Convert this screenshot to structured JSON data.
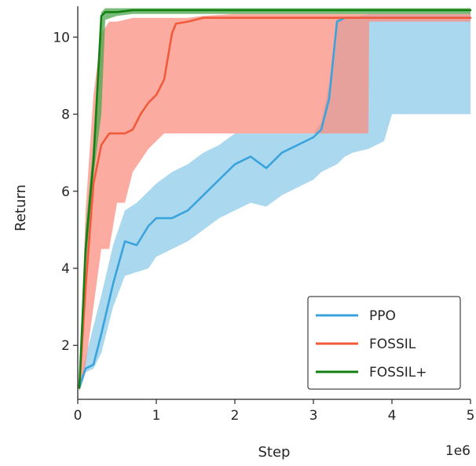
{
  "chart_data": {
    "type": "line",
    "xlabel": "Step",
    "ylabel": "Return",
    "x_offset_label": "1e6",
    "xlim": [
      0,
      5
    ],
    "ylim": [
      0.6,
      10.8
    ],
    "xticks": [
      0,
      1,
      2,
      3,
      4,
      5
    ],
    "yticks": [
      2,
      4,
      6,
      8,
      10
    ],
    "grid": false,
    "legend_position": "bottom-right",
    "series": [
      {
        "name": "PPO",
        "color": "#3ba3db",
        "band_color": "#8ecbea",
        "x": [
          0.02,
          0.1,
          0.2,
          0.3,
          0.45,
          0.6,
          0.75,
          0.9,
          1.0,
          1.2,
          1.4,
          1.6,
          1.8,
          2.0,
          2.2,
          2.4,
          2.6,
          2.8,
          3.0,
          3.1,
          3.2,
          3.3,
          3.4,
          3.5,
          3.7,
          3.9,
          4.0,
          4.5,
          5.0
        ],
        "mean": [
          0.9,
          1.4,
          1.5,
          2.3,
          3.6,
          4.7,
          4.6,
          5.1,
          5.3,
          5.3,
          5.5,
          5.9,
          6.3,
          6.7,
          6.9,
          6.6,
          7.0,
          7.2,
          7.4,
          7.6,
          8.4,
          10.4,
          10.5,
          10.5,
          10.5,
          10.5,
          10.5,
          10.5,
          10.5
        ],
        "upper": [
          1.0,
          1.7,
          2.5,
          3.3,
          4.6,
          5.5,
          5.7,
          6.0,
          6.2,
          6.5,
          6.7,
          7.0,
          7.2,
          7.5,
          7.5,
          7.5,
          7.5,
          7.5,
          7.5,
          7.8,
          8.8,
          10.5,
          10.5,
          10.5,
          10.6,
          10.6,
          10.6,
          10.6,
          10.6
        ],
        "lower": [
          0.8,
          1.3,
          1.4,
          1.8,
          3.0,
          3.8,
          3.9,
          4.0,
          4.3,
          4.5,
          4.7,
          5.0,
          5.3,
          5.5,
          5.7,
          5.6,
          5.9,
          6.1,
          6.3,
          6.5,
          6.6,
          6.7,
          6.9,
          7.0,
          7.1,
          7.3,
          8.0,
          8.0,
          8.0
        ]
      },
      {
        "name": "FOSSIL",
        "color": "#f25a3c",
        "band_color": "#fa8f80",
        "x": [
          0.02,
          0.1,
          0.2,
          0.3,
          0.4,
          0.5,
          0.6,
          0.7,
          0.8,
          0.9,
          1.0,
          1.1,
          1.2,
          1.25,
          1.4,
          1.6,
          2.0,
          3.0,
          3.7,
          3.71,
          4.0,
          5.0
        ],
        "mean": [
          0.9,
          3.5,
          6.2,
          7.2,
          7.5,
          7.5,
          7.5,
          7.6,
          8.0,
          8.3,
          8.5,
          8.9,
          10.1,
          10.35,
          10.4,
          10.5,
          10.5,
          10.5,
          10.5,
          10.5,
          10.5,
          10.5
        ],
        "upper": [
          1.0,
          5.5,
          8.5,
          10.1,
          10.4,
          10.4,
          10.45,
          10.5,
          10.5,
          10.5,
          10.5,
          10.5,
          10.5,
          10.5,
          10.5,
          10.55,
          10.6,
          10.6,
          10.6,
          10.6,
          10.6,
          10.6
        ],
        "lower": [
          0.8,
          1.5,
          3.0,
          4.5,
          4.5,
          5.7,
          5.7,
          6.5,
          6.8,
          7.1,
          7.3,
          7.5,
          7.5,
          7.5,
          7.5,
          7.5,
          7.5,
          7.5,
          7.5,
          10.4,
          10.4,
          10.4
        ]
      },
      {
        "name": "FOSSIL+",
        "color": "#128012",
        "band_color": "#4ca64c",
        "x": [
          0.02,
          0.1,
          0.2,
          0.3,
          0.35,
          0.5,
          0.7,
          1.0,
          2.0,
          3.0,
          4.0,
          5.0
        ],
        "mean": [
          0.9,
          4.5,
          6.8,
          10.55,
          10.65,
          10.65,
          10.7,
          10.7,
          10.7,
          10.7,
          10.7,
          10.7
        ],
        "upper": [
          1.0,
          5.0,
          7.2,
          10.65,
          10.75,
          10.75,
          10.75,
          10.75,
          10.75,
          10.75,
          10.75,
          10.75
        ],
        "lower": [
          0.8,
          4.0,
          6.4,
          8.0,
          10.45,
          10.55,
          10.6,
          10.6,
          10.6,
          10.6,
          10.6,
          10.6
        ]
      }
    ]
  }
}
